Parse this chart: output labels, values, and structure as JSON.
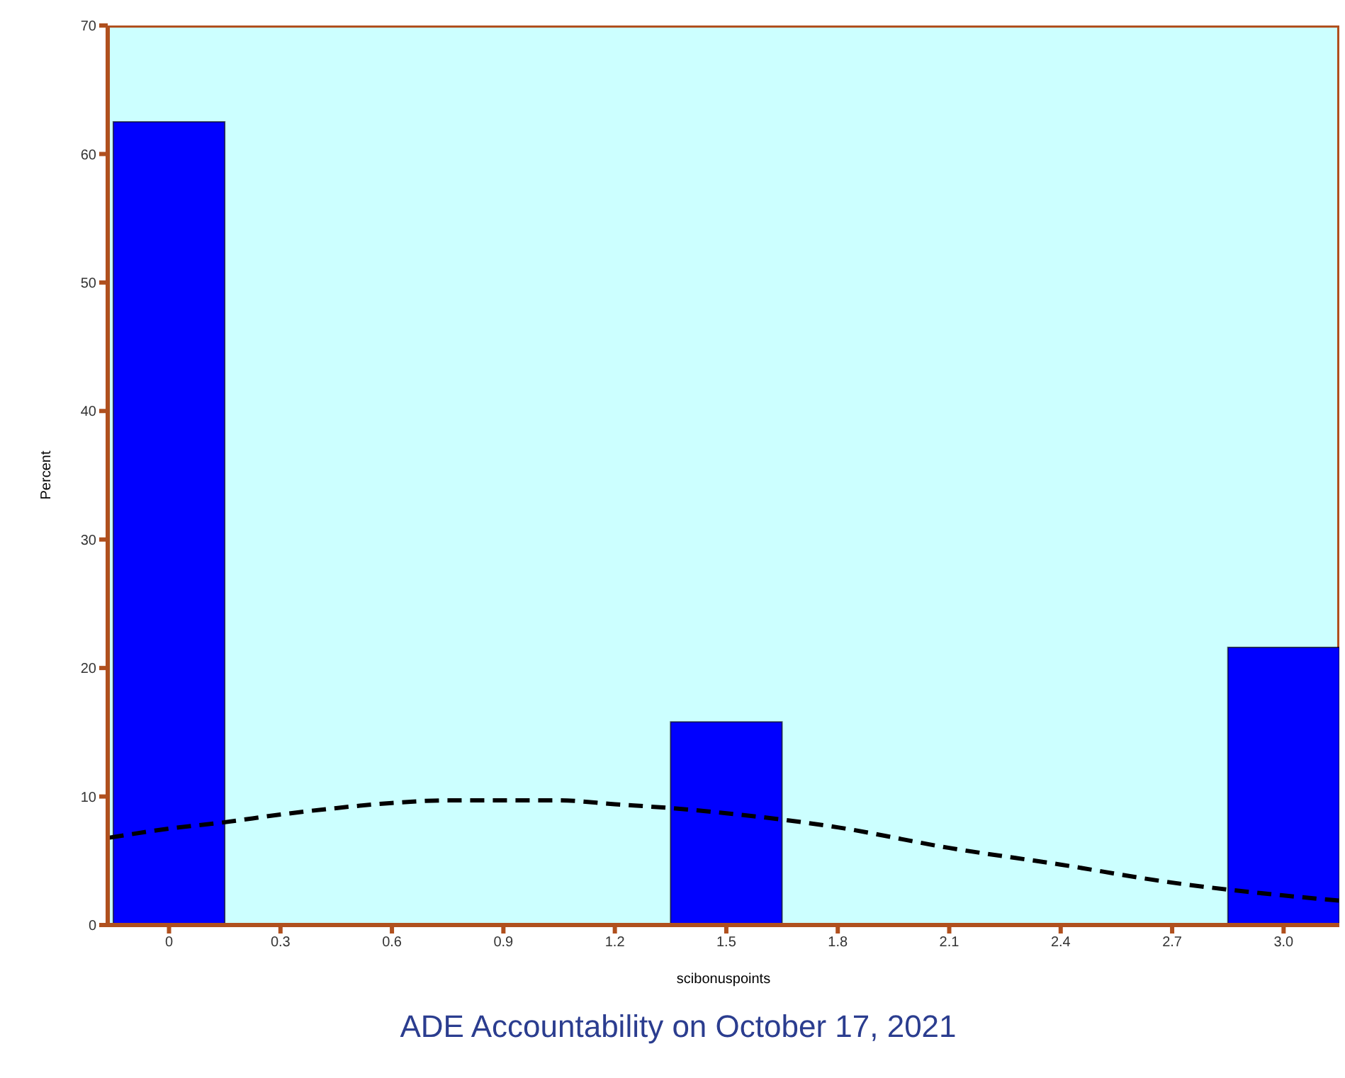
{
  "chart_data": {
    "type": "histogram",
    "xlabel": "scibonuspoints",
    "ylabel": "Percent",
    "bins": [
      -0.15,
      0.15,
      1.35,
      1.65,
      2.85,
      3.15
    ],
    "values": [
      62.5,
      null,
      15.8,
      null,
      21.6
    ],
    "color": "#0000ff",
    "series": [
      {
        "type": "line",
        "color": "#000000",
        "line_style": "dashed",
        "x": [
          -0.16,
          0,
          0.15,
          0.3,
          0.45,
          0.6,
          0.75,
          0.9,
          1.05,
          1.2,
          1.35,
          1.5,
          1.8,
          2.1,
          2.4,
          2.7,
          3.0,
          3.15
        ],
        "values": [
          6.8,
          7.5,
          8.0,
          8.6,
          9.1,
          9.5,
          9.7,
          9.7,
          9.7,
          9.4,
          9.1,
          8.7,
          7.6,
          6.0,
          4.7,
          3.3,
          2.3,
          1.9
        ]
      }
    ],
    "xlim": [
      -0.165,
      3.15
    ],
    "xticks": [
      0,
      0.3,
      0.6,
      0.9,
      1.2,
      1.5,
      1.8,
      2.1,
      2.4,
      2.7,
      {
        "value": 3,
        "label": "3.0"
      }
    ],
    "ylim": [
      0,
      70
    ],
    "yticks": [
      0,
      10,
      20,
      30,
      40,
      50,
      60,
      70
    ],
    "annotations": [
      "ADE Accountability on October 17, 2021"
    ]
  }
}
